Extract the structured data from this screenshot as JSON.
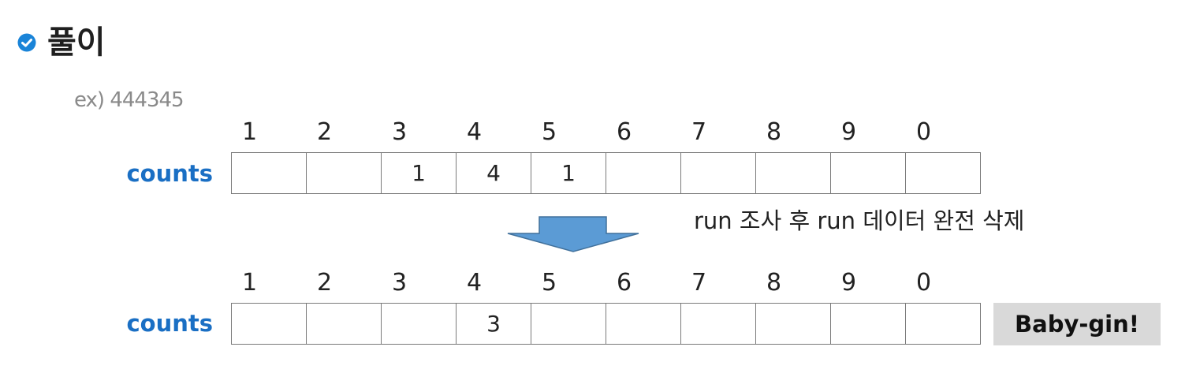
{
  "title": "풀이",
  "example": "ex) 444345",
  "digits": [
    "1",
    "2",
    "3",
    "4",
    "5",
    "6",
    "7",
    "8",
    "9",
    "0"
  ],
  "before": {
    "label": "counts",
    "cells": [
      "",
      "",
      "1",
      "4",
      "1",
      "",
      "",
      "",
      "",
      ""
    ]
  },
  "transition_note": "run 조사 후 run 데이터 완전 삭제",
  "after": {
    "label": "counts",
    "cells": [
      "",
      "",
      "",
      "3",
      "",
      "",
      "",
      "",
      "",
      ""
    ]
  },
  "result": "Baby-gin!",
  "colors": {
    "check_icon": "#1a84d8",
    "label_blue": "#1a6fc4",
    "arrow_fill": "#5b9bd5",
    "arrow_stroke": "#41719c",
    "badge_bg": "#d9d9d9"
  },
  "icons": {
    "title_marker": "check-circle-icon",
    "transition": "arrow-down-icon"
  }
}
